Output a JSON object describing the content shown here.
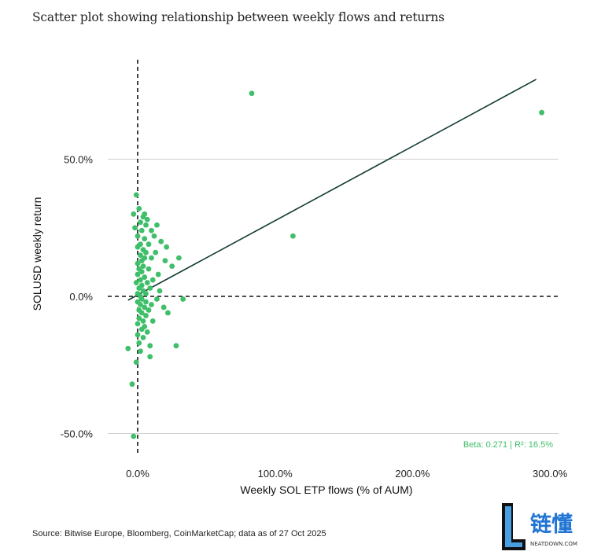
{
  "chart_data": {
    "type": "scatter",
    "title": "Scatter plot showing relationship between weekly flows and returns",
    "xlabel": "Weekly SOL ETP flows (% of AUM)",
    "ylabel": "SOLUSD weekly return",
    "x_ticks": [
      "0.0%",
      "100.0%",
      "200.0%",
      "300.0%"
    ],
    "y_ticks": [
      "50.0%",
      "0.0%",
      "-50.0%"
    ],
    "xlim": [
      -20,
      310
    ],
    "ylim": [
      -55,
      85
    ],
    "grid": "horizontal",
    "annotation": "Beta: 0.271 | R²: 16.5%",
    "trendline": {
      "slope": 0.271,
      "intercept": 0.5
    },
    "point_color": "#3fbf6a",
    "points": [
      [
        -7,
        -19
      ],
      [
        -4,
        -32
      ],
      [
        -3,
        -51
      ],
      [
        -3,
        30
      ],
      [
        -2,
        25
      ],
      [
        -1,
        37
      ],
      [
        -1,
        -24
      ],
      [
        -1,
        5
      ],
      [
        0,
        12
      ],
      [
        0,
        -10
      ],
      [
        0,
        18
      ],
      [
        0,
        8
      ],
      [
        0,
        -2
      ],
      [
        0,
        1
      ],
      [
        0,
        -14
      ],
      [
        0,
        22
      ],
      [
        1,
        -5
      ],
      [
        1,
        32
      ],
      [
        1,
        3
      ],
      [
        1,
        -17
      ],
      [
        1,
        10
      ],
      [
        1,
        -8
      ],
      [
        2,
        15
      ],
      [
        2,
        0
      ],
      [
        2,
        -20
      ],
      [
        2,
        27
      ],
      [
        2,
        6
      ],
      [
        2,
        -3
      ],
      [
        2,
        19
      ],
      [
        3,
        -12
      ],
      [
        3,
        13
      ],
      [
        3,
        4
      ],
      [
        3,
        -6
      ],
      [
        3,
        24
      ],
      [
        3,
        -1
      ],
      [
        3,
        9
      ],
      [
        4,
        29
      ],
      [
        4,
        -15
      ],
      [
        4,
        17
      ],
      [
        4,
        2
      ],
      [
        4,
        -9
      ],
      [
        4,
        11
      ],
      [
        5,
        21
      ],
      [
        5,
        -4
      ],
      [
        5,
        7
      ],
      [
        5,
        -11
      ],
      [
        5,
        30
      ],
      [
        5,
        14
      ],
      [
        6,
        1
      ],
      [
        6,
        -7
      ],
      [
        6,
        26
      ],
      [
        6,
        16
      ],
      [
        6,
        -2
      ],
      [
        7,
        5
      ],
      [
        7,
        -13
      ],
      [
        7,
        28
      ],
      [
        8,
        10
      ],
      [
        8,
        -5
      ],
      [
        8,
        19
      ],
      [
        9,
        3
      ],
      [
        9,
        -18
      ],
      [
        9,
        -22
      ],
      [
        10,
        14
      ],
      [
        10,
        -3
      ],
      [
        10,
        24
      ],
      [
        11,
        6
      ],
      [
        11,
        -9
      ],
      [
        12,
        22
      ],
      [
        13,
        16
      ],
      [
        14,
        -1
      ],
      [
        14,
        26
      ],
      [
        15,
        8
      ],
      [
        16,
        2
      ],
      [
        17,
        20
      ],
      [
        19,
        -4
      ],
      [
        20,
        13
      ],
      [
        21,
        18
      ],
      [
        22,
        -6
      ],
      [
        25,
        11
      ],
      [
        28,
        -18
      ],
      [
        30,
        14
      ],
      [
        33,
        -1
      ],
      [
        83,
        74
      ],
      [
        113,
        22
      ],
      [
        294,
        67
      ]
    ]
  },
  "source": "Source: Bitwise Europe, Bloomberg, CoinMarketCap; data as of 27 Oct 2025",
  "logo": {
    "main": "链懂",
    "sub": "NEATDOWN.COM",
    "letter": "L"
  }
}
